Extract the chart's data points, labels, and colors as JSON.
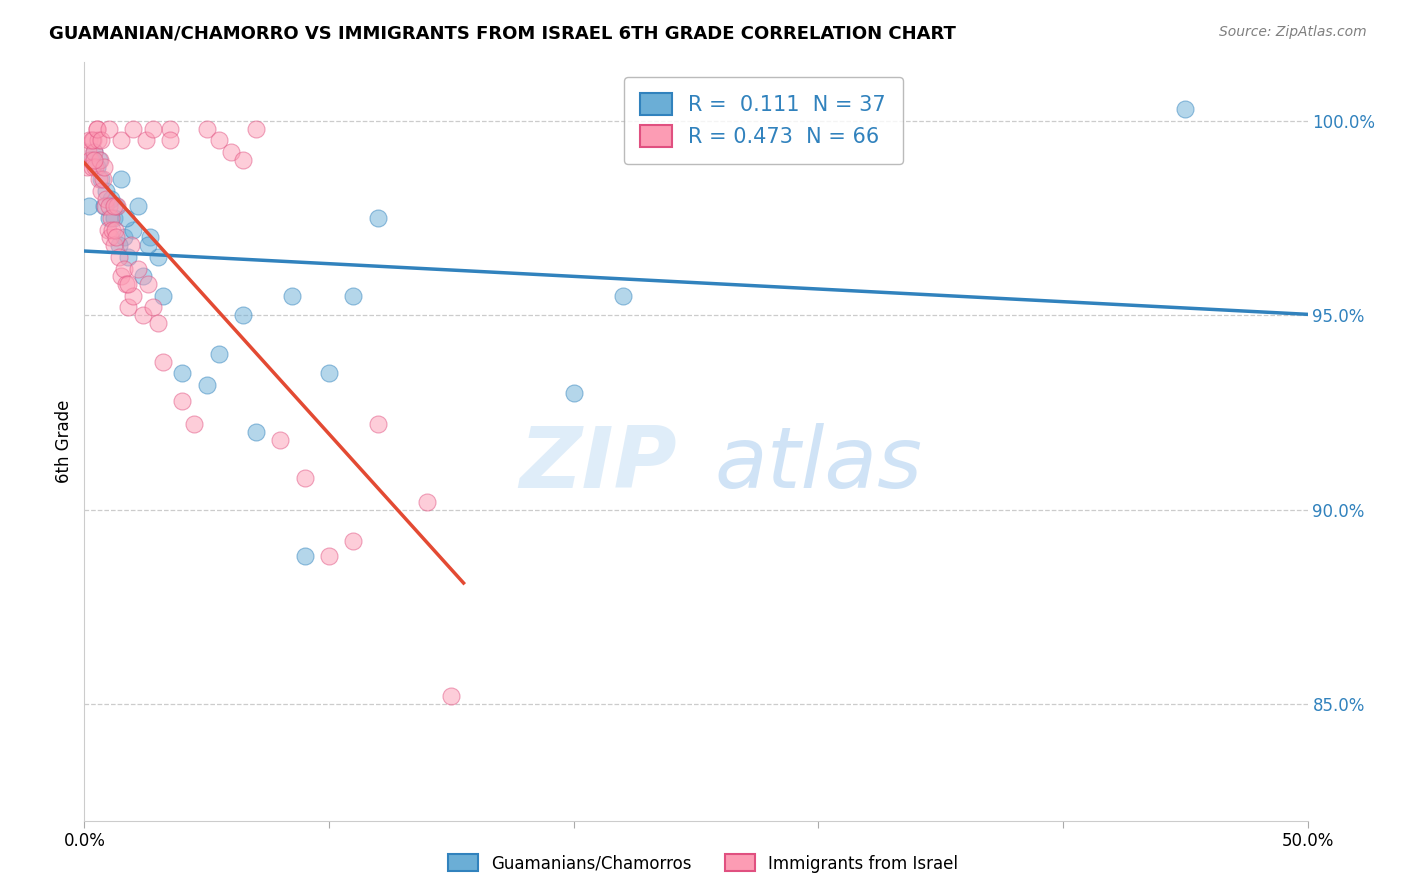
{
  "title": "GUAMANIAN/CHAMORRO VS IMMIGRANTS FROM ISRAEL 6TH GRADE CORRELATION CHART",
  "source": "Source: ZipAtlas.com",
  "ylabel": "6th Grade",
  "xlim": [
    0.0,
    50.0
  ],
  "ylim": [
    82.0,
    101.5
  ],
  "yticks": [
    85.0,
    90.0,
    95.0,
    100.0
  ],
  "r_blue": 0.111,
  "n_blue": 37,
  "r_pink": 0.473,
  "n_pink": 66,
  "blue_color": "#6baed6",
  "pink_color": "#fc9cb4",
  "trend_blue": "#3182bd",
  "trend_pink": "#e34a33",
  "blue_scatter_x": [
    0.2,
    0.4,
    0.5,
    0.7,
    0.9,
    1.0,
    1.1,
    1.3,
    1.5,
    1.6,
    1.8,
    2.0,
    2.2,
    2.4,
    2.7,
    3.0,
    3.2,
    4.0,
    5.0,
    5.5,
    6.5,
    7.0,
    8.5,
    10.0,
    11.0,
    12.0,
    20.0,
    22.0,
    0.3,
    0.6,
    0.8,
    1.2,
    1.4,
    1.7,
    2.6,
    9.0,
    45.0
  ],
  "blue_scatter_y": [
    97.8,
    99.2,
    98.8,
    98.5,
    98.2,
    97.5,
    98.0,
    97.8,
    98.5,
    97.0,
    96.5,
    97.2,
    97.8,
    96.0,
    97.0,
    96.5,
    95.5,
    93.5,
    93.2,
    94.0,
    95.0,
    92.0,
    95.5,
    93.5,
    95.5,
    97.5,
    93.0,
    95.5,
    99.0,
    99.0,
    97.8,
    97.5,
    96.8,
    97.5,
    96.8,
    88.8,
    100.3
  ],
  "pink_scatter_x": [
    0.1,
    0.15,
    0.2,
    0.25,
    0.3,
    0.35,
    0.4,
    0.45,
    0.5,
    0.55,
    0.6,
    0.65,
    0.7,
    0.75,
    0.8,
    0.85,
    0.9,
    0.95,
    1.0,
    1.05,
    1.1,
    1.15,
    1.2,
    1.25,
    1.3,
    1.35,
    1.4,
    1.5,
    1.6,
    1.7,
    1.8,
    1.9,
    2.0,
    2.2,
    2.4,
    2.6,
    2.8,
    3.0,
    3.2,
    3.5,
    4.0,
    4.5,
    5.0,
    5.5,
    6.0,
    6.5,
    7.0,
    8.0,
    9.0,
    10.0,
    11.0,
    12.0,
    14.0,
    15.0,
    0.3,
    0.5,
    0.7,
    1.0,
    1.5,
    2.0,
    2.5,
    2.8,
    3.5,
    1.2,
    1.8,
    0.4
  ],
  "pink_scatter_y": [
    98.8,
    99.2,
    99.5,
    99.0,
    98.8,
    99.5,
    99.2,
    98.8,
    99.8,
    99.5,
    98.5,
    99.0,
    98.2,
    98.5,
    98.8,
    97.8,
    98.0,
    97.2,
    97.8,
    97.0,
    97.5,
    97.2,
    96.8,
    97.2,
    97.0,
    97.8,
    96.5,
    96.0,
    96.2,
    95.8,
    95.2,
    96.8,
    95.5,
    96.2,
    95.0,
    95.8,
    95.2,
    94.8,
    93.8,
    99.8,
    92.8,
    92.2,
    99.8,
    99.5,
    99.2,
    99.0,
    99.8,
    91.8,
    90.8,
    88.8,
    89.2,
    92.2,
    90.2,
    85.2,
    99.5,
    99.8,
    99.5,
    99.8,
    99.5,
    99.8,
    99.5,
    99.8,
    99.5,
    97.8,
    95.8,
    99.0
  ]
}
